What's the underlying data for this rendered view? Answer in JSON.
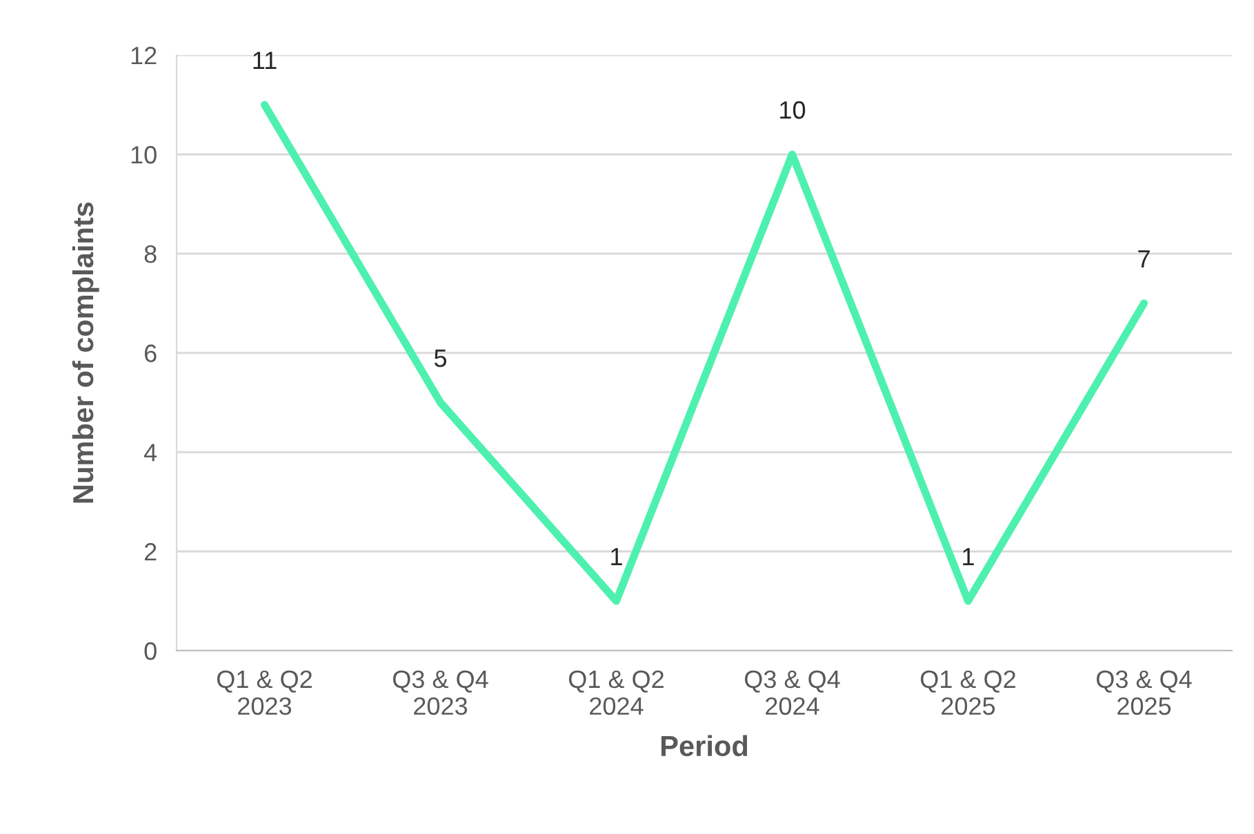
{
  "chart_data": {
    "type": "line",
    "xlabel": "Period",
    "ylabel": "Number of complaints",
    "categories": [
      "Q1 & Q2\n2023",
      "Q3 & Q4\n2023",
      "Q1 & Q2\n2024",
      "Q3 & Q4\n2024",
      "Q1 & Q2\n2025",
      "Q3 & Q4\n2025"
    ],
    "series": [
      {
        "color": "#4ef0b0",
        "values": [
          11,
          5,
          1,
          10,
          1,
          7
        ]
      }
    ],
    "ylim": [
      0,
      12
    ],
    "yticks": [
      0,
      2,
      4,
      6,
      8,
      10,
      12
    ],
    "grid": "y",
    "marker": "none",
    "line_style": "solid",
    "data_labels": true
  }
}
